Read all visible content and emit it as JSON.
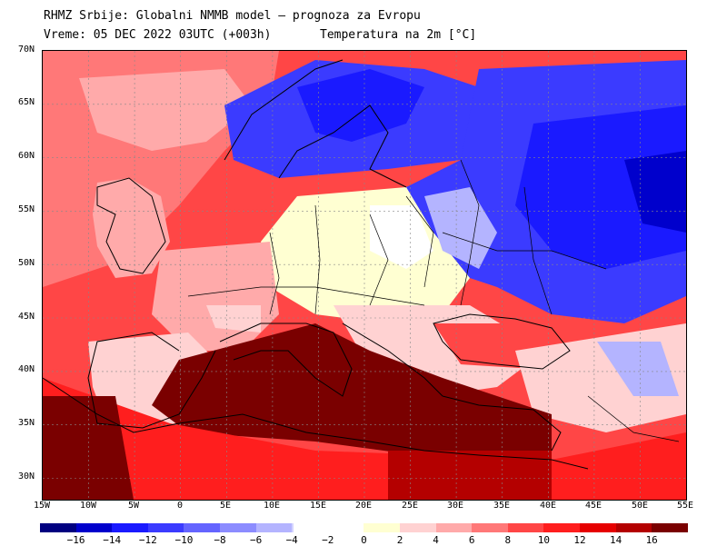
{
  "header": {
    "title": "RHMZ Srbije: Globalni NMMB model — prognoza za Evropu",
    "valid_time": "Vreme: 05 DEC 2022 03UTC (+003h)",
    "variable": "Temperatura na 2m [°C]"
  },
  "axes": {
    "lat_labels": [
      "70N",
      "65N",
      "60N",
      "55N",
      "50N",
      "45N",
      "40N",
      "35N",
      "30N"
    ],
    "lon_labels": [
      "15W",
      "10W",
      "5W",
      "0",
      "5E",
      "10E",
      "15E",
      "20E",
      "25E",
      "30E",
      "35E",
      "40E",
      "45E",
      "50E",
      "55E"
    ],
    "lat_range": [
      28,
      70
    ],
    "lon_range": [
      -15,
      55
    ]
  },
  "colorbar": {
    "tick_labels": [
      "−16",
      "−14",
      "−12",
      "−10",
      "−8",
      "−6",
      "−4",
      "−2",
      "0",
      "2",
      "4",
      "6",
      "8",
      "10",
      "12",
      "14",
      "16"
    ],
    "colors": [
      "#000080",
      "#0000cc",
      "#1a1aff",
      "#3b3bff",
      "#6464ff",
      "#8c8cff",
      "#b4b4ff",
      "#d4d4ff",
      "#ffffff",
      "#ffffd2",
      "#ffd2d2",
      "#ffaaaa",
      "#ff7878",
      "#ff4646",
      "#ff1e1e",
      "#e60000",
      "#b40000",
      "#7a0000"
    ]
  }
}
